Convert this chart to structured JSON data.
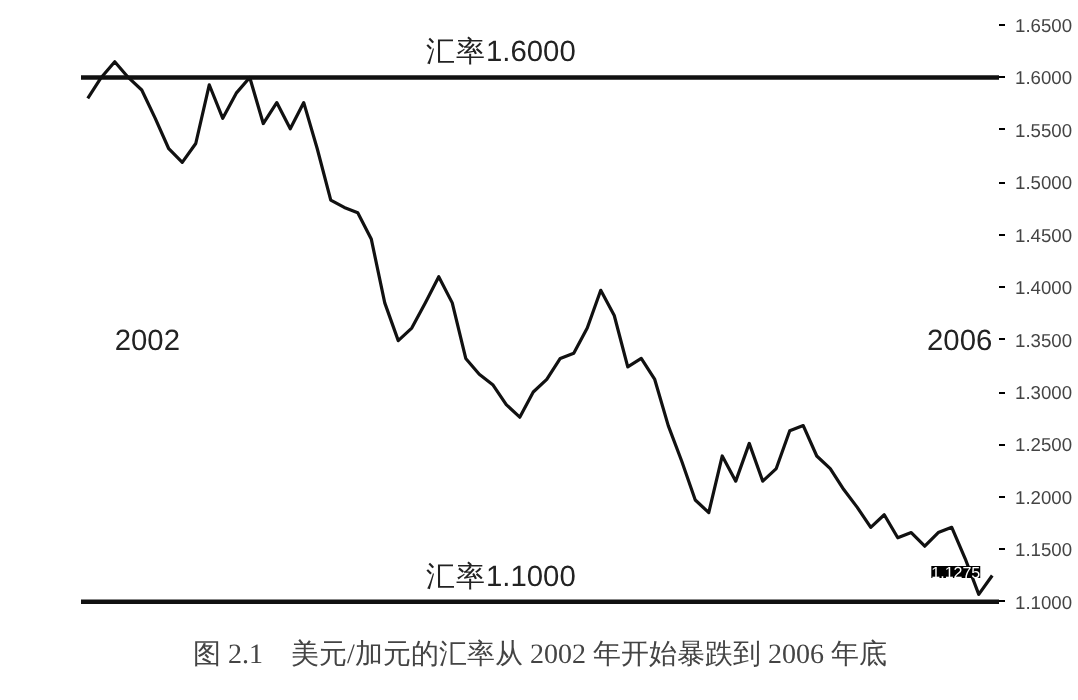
{
  "chart_data": {
    "type": "line",
    "title": "图 2.1　美元/加元的汇率从 2002 年开始暴跌到 2006 年底",
    "categories": [
      null,
      null,
      null,
      null,
      null,
      null,
      null,
      null,
      null,
      null,
      null,
      null,
      null,
      null,
      null,
      null,
      null,
      null,
      null,
      null,
      null,
      null,
      null,
      null,
      null,
      null,
      null,
      null,
      null,
      null,
      null,
      null,
      null,
      null,
      null,
      null,
      null,
      null,
      null,
      null,
      null,
      null,
      null,
      null,
      null,
      null,
      null,
      null,
      null,
      null,
      null,
      null,
      null,
      null,
      null,
      null,
      null,
      null,
      null,
      null,
      null,
      null,
      null,
      null,
      null,
      null,
      null,
      null
    ],
    "series": [
      {
        "color": "#111111",
        "values": [
          1.58,
          1.6,
          1.615,
          1.6,
          1.588,
          1.561,
          1.532,
          1.519,
          1.537,
          1.593,
          1.561,
          1.585,
          1.6,
          1.556,
          1.576,
          1.551,
          1.576,
          1.532,
          1.483,
          1.476,
          1.471,
          1.446,
          1.385,
          1.349,
          1.361,
          1.385,
          1.41,
          1.385,
          1.332,
          1.317,
          1.307,
          1.288,
          1.276,
          1.3,
          1.312,
          1.332,
          1.337,
          1.361,
          1.397,
          1.373,
          1.324,
          1.332,
          1.312,
          1.268,
          1.234,
          1.197,
          1.185,
          1.239,
          1.215,
          1.251,
          1.215,
          1.227,
          1.263,
          1.268,
          1.239,
          1.227,
          1.207,
          1.19,
          1.171,
          1.183,
          1.161,
          1.166,
          1.153,
          1.166,
          1.171,
          1.141,
          1.107,
          1.125
        ]
      }
    ],
    "ylim": [
      1.095,
      1.65
    ],
    "yticks": [
      {
        "value": 1.1,
        "label": "1.1000"
      },
      {
        "value": 1.15,
        "label": "1.1500"
      },
      {
        "value": 1.2,
        "label": "1.2000"
      },
      {
        "value": 1.25,
        "label": "1.2500"
      },
      {
        "value": 1.3,
        "label": "1.3000"
      },
      {
        "value": 1.35,
        "label": "1.3500"
      },
      {
        "value": 1.4,
        "label": "1.4000"
      },
      {
        "value": 1.45,
        "label": "1.4500"
      },
      {
        "value": 1.5,
        "label": "1.5000"
      },
      {
        "value": 1.55,
        "label": "1.5500"
      },
      {
        "value": 1.6,
        "label": "1.6000"
      },
      {
        "value": 1.65,
        "label": "1.6500"
      }
    ],
    "tick_labels": "y",
    "ref_lines": [
      {
        "axis": "y",
        "value": 1.6,
        "label": "汇率1.6000",
        "color": "#111111"
      },
      {
        "axis": "y",
        "value": 1.1,
        "label": "汇率1.1000",
        "color": "#111111"
      }
    ],
    "annotations": [
      "2002",
      "2006",
      "1.1275"
    ],
    "grid": false
  }
}
